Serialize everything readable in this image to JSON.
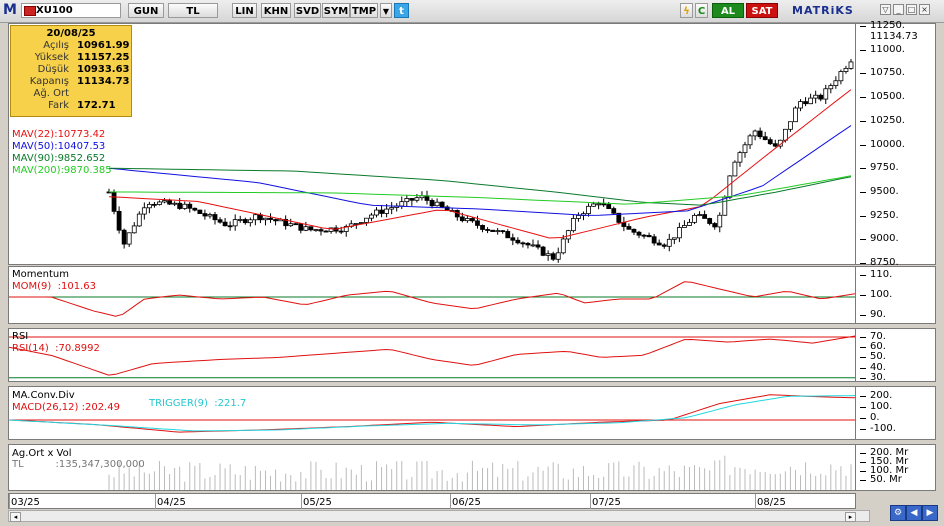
{
  "toolbar": {
    "logo": "M",
    "symbol": "XU100",
    "period_buttons": [
      "GUN",
      "TL",
      "LIN",
      "KHN",
      "SVD",
      "SYM",
      "TMP"
    ],
    "buy_label": "AL",
    "sell_label": "SAT",
    "brand": "MATRiKS",
    "icons": [
      "lightning-icon",
      "refresh-icon",
      "twitter-icon",
      "window-buttons"
    ]
  },
  "infobox": {
    "date": "20/08/25",
    "rows": [
      {
        "label": "Açılış",
        "value": "10961.99"
      },
      {
        "label": "Yüksek",
        "value": "11157.25"
      },
      {
        "label": "Düşük",
        "value": "10933.63"
      },
      {
        "label": "Kapanış",
        "value": "11134.73"
      },
      {
        "label": "Ağ. Ort",
        "value": ""
      },
      {
        "label": "Fark",
        "value": "172.71"
      }
    ]
  },
  "price_panel": {
    "last_price": "11134.73",
    "yticks": [
      "11250.",
      "11000.",
      "10750.",
      "10500.",
      "10250.",
      "10000.",
      "9750.",
      "9500.",
      "9250.",
      "9000.",
      "8750."
    ],
    "ma_labels": [
      {
        "name": "MAV(22)",
        "value": ":10773.42",
        "color": "#e81010"
      },
      {
        "name": "MAV(50)",
        "value": ":10407.53",
        "color": "#1010e0"
      },
      {
        "name": "MAV(90)",
        "value": ":9852.652",
        "color": "#0a7a2a"
      },
      {
        "name": "MAV(200)",
        "value": ":9870.385",
        "color": "#22cc22"
      }
    ]
  },
  "momentum_panel": {
    "title": "Momentum",
    "series_label": "MOM(9)",
    "value": ":101.63",
    "yticks": [
      "110.",
      "100.",
      "90."
    ]
  },
  "rsi_panel": {
    "title": "RSI",
    "series_label": "RSI(14)",
    "value": ":70.8992",
    "yticks": [
      "70.",
      "60.",
      "50.",
      "40.",
      "30."
    ]
  },
  "macd_panel": {
    "title": "MA.Conv.Div",
    "series_label": "MACD(26,12)",
    "value": ":202.49",
    "trigger_label": "TRIGGER(9)",
    "trigger_value": ":221.7",
    "yticks": [
      "200.",
      "100.",
      "0.",
      "-100."
    ]
  },
  "volume_panel": {
    "title": "Ag.Ort x Vol",
    "series_label": "TL",
    "value": ":135,347,300,000",
    "yticks": [
      "200. Mr",
      "150. Mr",
      "100. Mr",
      "50. Mr"
    ]
  },
  "xaxis": {
    "labels": [
      "03/25",
      "04/25",
      "05/25",
      "06/25",
      "07/25",
      "08/25"
    ]
  },
  "colors": {
    "up": "#ffffff",
    "down": "#000000",
    "ma22": "#e81010",
    "ma50": "#1010e0",
    "ma90": "#0a7a2a",
    "ma200": "#22cc22",
    "indicator": "#e01010",
    "trigger": "#22d6e0"
  }
}
